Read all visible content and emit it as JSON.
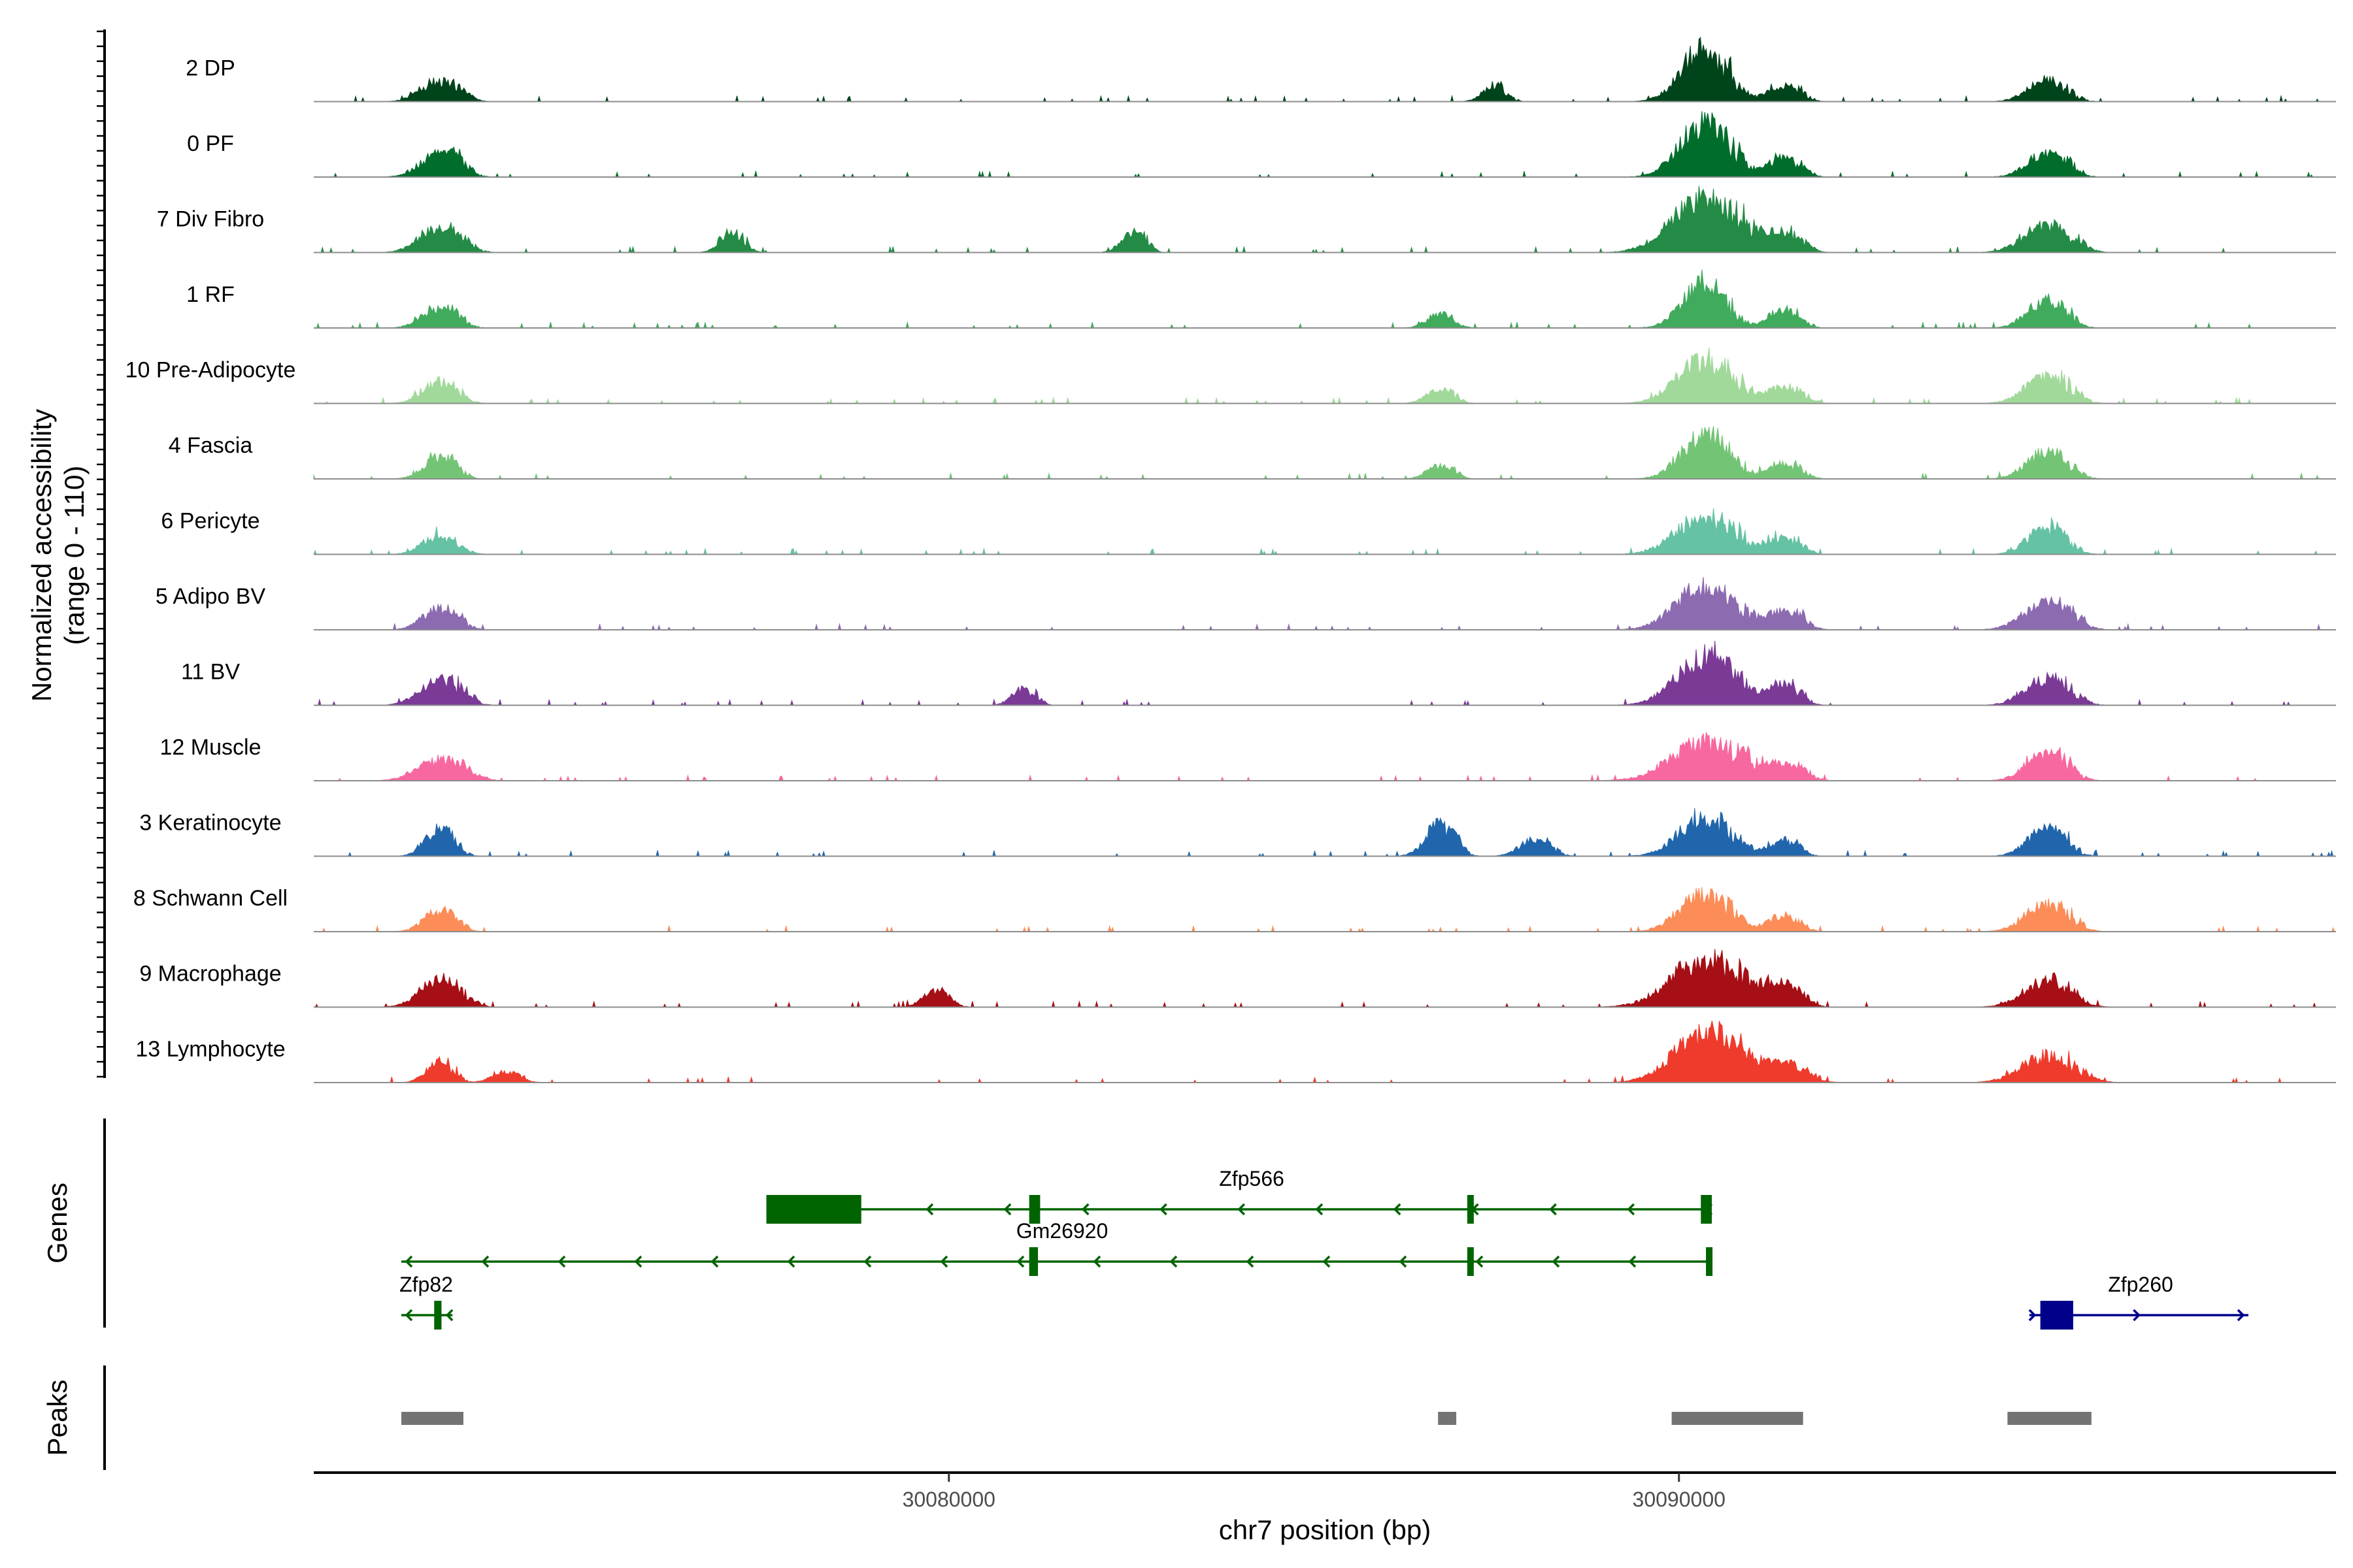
{
  "chart_data": {
    "type": "area",
    "title": "",
    "ylabel": "Normalized accessibility",
    "ylabel_range": "(range 0 - 110)",
    "xlabel": "chr7 position (bp)",
    "chrom": "chr7",
    "xlim": [
      30071300,
      30099000
    ],
    "ylim": [
      0,
      110
    ],
    "x_ticks": [
      30080000,
      30090000
    ],
    "x_tick_labels": [
      "30080000",
      "30090000"
    ],
    "tracks": [
      {
        "name": "2 DP",
        "color": "#00441b",
        "peaks": [
          [
            30073000,
            0.4,
            0.3
          ],
          [
            30087450,
            0.3,
            0.05
          ],
          [
            30090300,
            1.0,
            0.45
          ],
          [
            30091400,
            0.3,
            0.2
          ],
          [
            30095000,
            0.4,
            0.3
          ]
        ]
      },
      {
        "name": "0 PF",
        "color": "#006d2c",
        "peaks": [
          [
            30073000,
            0.45,
            0.32
          ],
          [
            30090300,
            1.0,
            0.5
          ],
          [
            30091400,
            0.35,
            0.22
          ],
          [
            30095000,
            0.45,
            0.32
          ]
        ]
      },
      {
        "name": "7 Div Fibro",
        "color": "#238b45",
        "peaks": [
          [
            30073000,
            0.5,
            0.35
          ],
          [
            30077000,
            0.4,
            0.05
          ],
          [
            30082500,
            0.4,
            0.05
          ],
          [
            30090300,
            1.0,
            0.8
          ],
          [
            30091400,
            0.35,
            0.25
          ],
          [
            30095000,
            0.5,
            0.45
          ]
        ]
      },
      {
        "name": "1 RF",
        "color": "#41ab5d",
        "peaks": [
          [
            30073000,
            0.4,
            0.25
          ],
          [
            30086700,
            0.25,
            0.1
          ],
          [
            30090300,
            0.8,
            0.4
          ],
          [
            30091400,
            0.35,
            0.18
          ],
          [
            30095000,
            0.5,
            0.3
          ]
        ]
      },
      {
        "name": "10 Pre-Adipocyte",
        "color": "#a1d99b",
        "peaks": [
          [
            30073000,
            0.4,
            0.25
          ],
          [
            30086700,
            0.25,
            0.12
          ],
          [
            30090300,
            0.8,
            0.6
          ],
          [
            30091400,
            0.3,
            0.28
          ],
          [
            30095000,
            0.5,
            0.4
          ]
        ]
      },
      {
        "name": "4 Fascia",
        "color": "#74c476",
        "peaks": [
          [
            30073000,
            0.4,
            0.2
          ],
          [
            30086700,
            0.25,
            0.1
          ],
          [
            30090300,
            0.8,
            0.45
          ],
          [
            30091400,
            0.3,
            0.2
          ],
          [
            30095000,
            0.5,
            0.35
          ]
        ]
      },
      {
        "name": "6 Pericyte",
        "color": "#66c2a4",
        "peaks": [
          [
            30073000,
            0.35,
            0.25
          ],
          [
            30090300,
            0.7,
            0.65
          ],
          [
            30091400,
            0.3,
            0.2
          ],
          [
            30095000,
            0.5,
            0.3
          ]
        ]
      },
      {
        "name": "5 Adipo BV",
        "color": "#8c6bb1",
        "peaks": [
          [
            30073000,
            0.4,
            0.25
          ],
          [
            30090300,
            0.8,
            0.65
          ],
          [
            30091400,
            0.35,
            0.25
          ],
          [
            30095000,
            0.5,
            0.45
          ]
        ]
      },
      {
        "name": "11 BV",
        "color": "#7a3a96",
        "peaks": [
          [
            30073000,
            0.5,
            0.35
          ],
          [
            30081000,
            0.3,
            0.05
          ],
          [
            30090300,
            0.9,
            0.65
          ],
          [
            30091400,
            0.4,
            0.18
          ],
          [
            30095000,
            0.5,
            0.4
          ]
        ]
      },
      {
        "name": "12 Muscle",
        "color": "#f768a1",
        "peaks": [
          [
            30073000,
            0.4,
            0.45
          ],
          [
            30090300,
            0.7,
            0.85
          ],
          [
            30091400,
            0.3,
            0.3
          ],
          [
            30095000,
            0.5,
            0.35
          ]
        ]
      },
      {
        "name": "3 Keratinocyte",
        "color": "#2166ac",
        "peaks": [
          [
            30073000,
            0.5,
            0.15
          ],
          [
            30086700,
            0.6,
            0.15
          ],
          [
            30088000,
            0.3,
            0.18
          ],
          [
            30090300,
            0.7,
            0.55
          ],
          [
            30091400,
            0.3,
            0.15
          ],
          [
            30095000,
            0.5,
            0.3
          ]
        ]
      },
      {
        "name": "8 Schwann Cell",
        "color": "#fc8d59",
        "peaks": [
          [
            30073000,
            0.4,
            0.2
          ],
          [
            30090300,
            0.7,
            0.5
          ],
          [
            30091400,
            0.3,
            0.18
          ],
          [
            30095000,
            0.5,
            0.4
          ]
        ]
      },
      {
        "name": "9 Macrophage",
        "color": "#a50f15",
        "peaks": [
          [
            30073000,
            0.5,
            0.35
          ],
          [
            30079800,
            0.3,
            0.1
          ],
          [
            30090300,
            0.9,
            0.85
          ],
          [
            30091400,
            0.4,
            0.25
          ],
          [
            30095000,
            0.5,
            0.45
          ]
        ]
      },
      {
        "name": "13 Lymphocyte",
        "color": "#ef3b2c",
        "peaks": [
          [
            30073000,
            0.4,
            0.1
          ],
          [
            30073900,
            0.2,
            0.12
          ],
          [
            30090300,
            0.9,
            0.75
          ],
          [
            30091400,
            0.4,
            0.35
          ],
          [
            30095000,
            0.5,
            0.55
          ]
        ]
      }
    ],
    "genes_panel_label": "Genes",
    "genes": [
      {
        "name": "Zfp566",
        "strand": "-",
        "color": "#006400",
        "start": 30077500,
        "end": 30090450,
        "exons": [
          [
            30077500,
            30078800
          ],
          [
            30081100,
            30081250
          ],
          [
            30087100,
            30087160
          ],
          [
            30090300,
            30090450
          ]
        ]
      },
      {
        "name": "Gm26920",
        "strand": "-",
        "color": "#006400",
        "start": 30072500,
        "end": 30090450,
        "exons": [
          [
            30081100,
            30081220
          ],
          [
            30087100,
            30087160
          ],
          [
            30090370,
            30090450
          ]
        ]
      },
      {
        "name": "Zfp82",
        "strand": "-",
        "color": "#006400",
        "start": 30072500,
        "end": 30073200,
        "exons": [
          [
            30072950,
            30073050
          ]
        ]
      },
      {
        "name": "Zfp260",
        "strand": "+",
        "color": "#00008b",
        "start": 30094800,
        "end": 30097800,
        "exons": [
          [
            30094950,
            30095400
          ]
        ]
      }
    ],
    "peaks_panel_label": "Peaks",
    "peak_regions": [
      [
        30072500,
        30073350
      ],
      [
        30086700,
        30086950
      ],
      [
        30089900,
        30091700
      ],
      [
        30094500,
        30095650
      ]
    ],
    "colors": {
      "peak": "#737373",
      "baseline": "#8c8c8c",
      "axis": "#000000"
    }
  }
}
